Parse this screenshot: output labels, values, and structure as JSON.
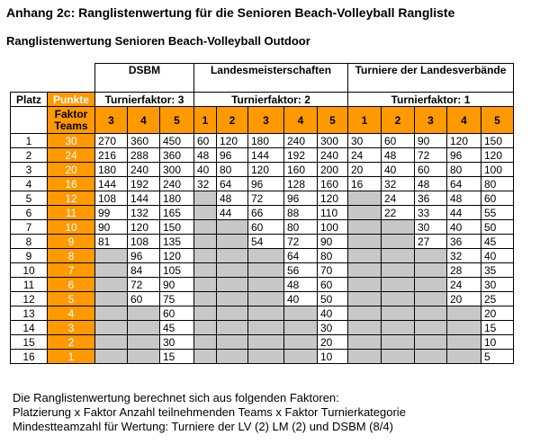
{
  "header": {
    "title": "Anhang 2c: Ranglistenwertung für die Senioren Beach-Volleyball Rangliste",
    "subtitle": "Ranglistenwertung Senioren Beach-Volleyball Outdoor"
  },
  "table": {
    "groups": [
      "DSBM",
      "Landesmeisterschaften",
      "Turniere der Landesverbände"
    ],
    "col_platz": "Platz",
    "col_punkte": "Punkte",
    "factor_label": "Faktor Teams",
    "turnierfaktor": [
      "Turnierfaktor: 3",
      "Turnierfaktor: 2",
      "Turnierfaktor: 1"
    ],
    "dsbm_team_counts": [
      "3",
      "4",
      "5"
    ],
    "lm_team_counts": [
      "1",
      "2",
      "3",
      "4",
      "5"
    ],
    "lv_team_counts": [
      "1",
      "2",
      "3",
      "4",
      "5"
    ],
    "rows": [
      {
        "platz": "1",
        "punkte": "30",
        "dsbm": [
          "270",
          "360",
          "450"
        ],
        "lm": [
          "60",
          "120",
          "180",
          "240",
          "300"
        ],
        "lv": [
          "30",
          "60",
          "90",
          "120",
          "150"
        ]
      },
      {
        "platz": "2",
        "punkte": "24",
        "dsbm": [
          "216",
          "288",
          "360"
        ],
        "lm": [
          "48",
          "96",
          "144",
          "192",
          "240"
        ],
        "lv": [
          "24",
          "48",
          "72",
          "96",
          "120"
        ]
      },
      {
        "platz": "3",
        "punkte": "20",
        "dsbm": [
          "180",
          "240",
          "300"
        ],
        "lm": [
          "40",
          "80",
          "120",
          "160",
          "200"
        ],
        "lv": [
          "20",
          "40",
          "60",
          "80",
          "100"
        ]
      },
      {
        "platz": "4",
        "punkte": "16",
        "dsbm": [
          "144",
          "192",
          "240"
        ],
        "lm": [
          "32",
          "64",
          "96",
          "128",
          "160"
        ],
        "lv": [
          "16",
          "32",
          "48",
          "64",
          "80"
        ]
      },
      {
        "platz": "5",
        "punkte": "12",
        "dsbm": [
          "108",
          "144",
          "180"
        ],
        "lm": [
          "",
          "48",
          "72",
          "96",
          "120"
        ],
        "lv": [
          "",
          "24",
          "36",
          "48",
          "60"
        ]
      },
      {
        "platz": "6",
        "punkte": "11",
        "dsbm": [
          "99",
          "132",
          "165"
        ],
        "lm": [
          "",
          "44",
          "66",
          "88",
          "110"
        ],
        "lv": [
          "",
          "22",
          "33",
          "44",
          "55"
        ]
      },
      {
        "platz": "7",
        "punkte": "10",
        "dsbm": [
          "90",
          "120",
          "150"
        ],
        "lm": [
          "",
          "",
          "60",
          "80",
          "100"
        ],
        "lv": [
          "",
          "",
          "30",
          "40",
          "50"
        ]
      },
      {
        "platz": "8",
        "punkte": "9",
        "dsbm": [
          "81",
          "108",
          "135"
        ],
        "lm": [
          "",
          "",
          "54",
          "72",
          "90"
        ],
        "lv": [
          "",
          "",
          "27",
          "36",
          "45"
        ]
      },
      {
        "platz": "9",
        "punkte": "8",
        "dsbm": [
          "",
          "96",
          "120"
        ],
        "lm": [
          "",
          "",
          "",
          "64",
          "80"
        ],
        "lv": [
          "",
          "",
          "",
          "32",
          "40"
        ]
      },
      {
        "platz": "10",
        "punkte": "7",
        "dsbm": [
          "",
          "84",
          "105"
        ],
        "lm": [
          "",
          "",
          "",
          "56",
          "70"
        ],
        "lv": [
          "",
          "",
          "",
          "28",
          "35"
        ]
      },
      {
        "platz": "11",
        "punkte": "6",
        "dsbm": [
          "",
          "72",
          "90"
        ],
        "lm": [
          "",
          "",
          "",
          "48",
          "60"
        ],
        "lv": [
          "",
          "",
          "",
          "24",
          "30"
        ]
      },
      {
        "platz": "12",
        "punkte": "5",
        "dsbm": [
          "",
          "60",
          "75"
        ],
        "lm": [
          "",
          "",
          "",
          "40",
          "50"
        ],
        "lv": [
          "",
          "",
          "",
          "20",
          "25"
        ]
      },
      {
        "platz": "13",
        "punkte": "4",
        "dsbm": [
          "",
          "",
          "60"
        ],
        "lm": [
          "",
          "",
          "",
          "",
          "40"
        ],
        "lv": [
          "",
          "",
          "",
          "",
          "20"
        ]
      },
      {
        "platz": "14",
        "punkte": "3",
        "dsbm": [
          "",
          "",
          "45"
        ],
        "lm": [
          "",
          "",
          "",
          "",
          "30"
        ],
        "lv": [
          "",
          "",
          "",
          "",
          "15"
        ]
      },
      {
        "platz": "15",
        "punkte": "2",
        "dsbm": [
          "",
          "",
          "30"
        ],
        "lm": [
          "",
          "",
          "",
          "",
          "20"
        ],
        "lv": [
          "",
          "",
          "",
          "",
          "10"
        ]
      },
      {
        "platz": "16",
        "punkte": "1",
        "dsbm": [
          "",
          "",
          "15"
        ],
        "lm": [
          "",
          "",
          "",
          "",
          "10"
        ],
        "lv": [
          "",
          "",
          "",
          "",
          "5"
        ]
      }
    ]
  },
  "footer": {
    "line1": "Die Ranglistenwertung berechnet sich aus folgenden Faktoren:",
    "line2": "Platzierung x Faktor Anzahl teilnehmenden Teams x  Faktor Turnierkategorie",
    "line3": "Mindestteamzahl für Wertung: Turniere der LV (2) LM (2) und DSBM (8/4)"
  },
  "colors": {
    "accent_orange": "#ff9900",
    "empty_gray": "#c8c8c8"
  }
}
